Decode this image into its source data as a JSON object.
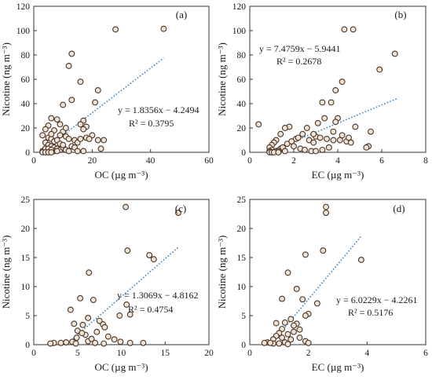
{
  "chart_data": [
    {
      "type": "scatter",
      "panel_label": "(a)",
      "xlabel": "OC (µg m⁻³)",
      "ylabel": "Nicotine (ng m⁻³)",
      "xlim": [
        0,
        60
      ],
      "ylim": [
        0,
        120
      ],
      "xticks": [
        0,
        20,
        40,
        60
      ],
      "yticks": [
        0,
        20,
        40,
        60,
        80,
        100,
        120
      ],
      "grid": false,
      "fit": {
        "slope": 1.8356,
        "intercept": -4.2494,
        "x_range": [
          3,
          44.5
        ]
      },
      "equation": "y = 1.8356x − 4.2494",
      "r2": "R² = 0.3795",
      "points": [
        [
          28,
          101
        ],
        [
          44.5,
          101.5
        ],
        [
          13,
          81
        ],
        [
          12,
          71
        ],
        [
          16,
          58
        ],
        [
          22,
          51
        ],
        [
          21,
          41
        ],
        [
          10,
          39
        ],
        [
          13,
          43
        ],
        [
          17,
          26
        ],
        [
          18,
          21
        ],
        [
          17,
          19
        ],
        [
          16,
          23
        ],
        [
          20,
          14
        ],
        [
          8,
          27
        ],
        [
          9,
          23
        ],
        [
          6,
          28
        ],
        [
          5,
          22
        ],
        [
          4,
          19
        ],
        [
          7,
          18
        ],
        [
          10,
          17
        ],
        [
          9,
          14
        ],
        [
          11,
          13
        ],
        [
          12,
          11
        ],
        [
          14,
          10
        ],
        [
          15,
          8
        ],
        [
          5,
          12
        ],
        [
          6,
          11
        ],
        [
          7,
          9
        ],
        [
          8,
          10
        ],
        [
          4,
          8
        ],
        [
          5,
          6
        ],
        [
          6,
          5
        ],
        [
          7,
          4
        ],
        [
          8,
          3
        ],
        [
          9,
          2
        ],
        [
          10,
          4
        ],
        [
          11,
          2
        ],
        [
          12,
          1
        ],
        [
          3,
          1
        ],
        [
          4,
          1
        ],
        [
          5,
          1
        ],
        [
          6,
          1
        ],
        [
          7,
          1
        ],
        [
          8,
          1
        ],
        [
          4,
          3
        ],
        [
          5,
          3
        ],
        [
          6,
          2
        ],
        [
          3,
          0
        ],
        [
          4,
          0
        ],
        [
          5,
          0
        ],
        [
          6,
          0
        ],
        [
          9,
          7
        ],
        [
          10,
          6
        ],
        [
          13,
          5
        ],
        [
          14,
          4
        ],
        [
          16,
          11
        ],
        [
          18,
          12
        ],
        [
          19,
          11
        ],
        [
          22,
          10
        ],
        [
          24,
          10
        ],
        [
          23,
          3
        ],
        [
          15,
          1
        ],
        [
          17,
          1
        ],
        [
          11,
          20
        ],
        [
          6,
          15
        ],
        [
          3,
          14
        ]
      ]
    },
    {
      "type": "scatter",
      "panel_label": "(b)",
      "xlabel": "EC (µg m⁻³)",
      "ylabel": "Nicotine (ng m⁻³)",
      "xlim": [
        0,
        8
      ],
      "ylim": [
        0,
        120
      ],
      "xticks": [
        0,
        2,
        4,
        6,
        8
      ],
      "yticks": [
        0,
        20,
        40,
        60,
        80,
        100,
        120
      ],
      "grid": false,
      "fit": {
        "slope": 7.4759,
        "intercept": -5.9441,
        "x_range": [
          0.85,
          6.7
        ]
      },
      "equation": "y = 7.4759x − 5.9441",
      "r2": "R² = 0.2678",
      "points": [
        [
          4.3,
          101
        ],
        [
          4.7,
          101
        ],
        [
          6.6,
          81
        ],
        [
          5.9,
          68
        ],
        [
          4.2,
          58
        ],
        [
          3.9,
          51
        ],
        [
          0.4,
          23
        ],
        [
          3.3,
          41
        ],
        [
          3.7,
          41
        ],
        [
          3.4,
          28
        ],
        [
          4,
          28
        ],
        [
          3.9,
          25
        ],
        [
          3.1,
          24
        ],
        [
          2.6,
          20
        ],
        [
          2.4,
          15
        ],
        [
          2.1,
          11
        ],
        [
          1.8,
          21
        ],
        [
          1.6,
          20
        ],
        [
          1.4,
          15
        ],
        [
          1.2,
          10
        ],
        [
          1.1,
          8
        ],
        [
          1,
          6
        ],
        [
          0.9,
          4
        ],
        [
          1,
          2
        ],
        [
          1.2,
          1
        ],
        [
          1.4,
          3
        ],
        [
          1.5,
          4
        ],
        [
          1.7,
          7
        ],
        [
          1.9,
          9
        ],
        [
          2.2,
          12
        ],
        [
          2.7,
          10
        ],
        [
          2.9,
          8
        ],
        [
          3,
          13
        ],
        [
          3.2,
          12
        ],
        [
          3.5,
          11
        ],
        [
          3.8,
          10
        ],
        [
          4.1,
          10
        ],
        [
          4.4,
          9
        ],
        [
          4.5,
          12
        ],
        [
          4.6,
          8
        ],
        [
          2,
          5
        ],
        [
          2.3,
          3
        ],
        [
          2.5,
          2
        ],
        [
          2.8,
          1
        ],
        [
          3,
          1
        ],
        [
          3.3,
          2
        ],
        [
          3.6,
          4
        ],
        [
          1.3,
          1
        ],
        [
          1.6,
          1
        ],
        [
          0.9,
          1
        ],
        [
          0.9,
          0
        ],
        [
          1,
          0
        ],
        [
          1.1,
          0
        ],
        [
          1.3,
          0
        ],
        [
          4.8,
          21
        ],
        [
          5.4,
          5
        ],
        [
          5.3,
          4
        ],
        [
          5.5,
          17
        ],
        [
          3.8,
          17
        ],
        [
          2.9,
          15
        ],
        [
          4.2,
          14
        ]
      ]
    },
    {
      "type": "scatter",
      "panel_label": "(c)",
      "xlabel": "OC (µg m⁻³)",
      "ylabel": "Nicotine (ng m⁻³)",
      "xlim": [
        0,
        20
      ],
      "ylim": [
        0,
        25
      ],
      "xticks": [
        0,
        5,
        10,
        15,
        20
      ],
      "yticks": [
        0,
        5,
        10,
        15,
        20,
        25
      ],
      "grid": false,
      "fit": {
        "slope": 1.3069,
        "intercept": -4.8162,
        "x_range": [
          4.5,
          16.5
        ]
      },
      "equation": "y = 1.3069x − 4.8162",
      "r2": "R² = 0.4754",
      "points": [
        [
          10.5,
          23.7
        ],
        [
          16.5,
          22.7
        ],
        [
          10.7,
          16.2
        ],
        [
          13.2,
          15.4
        ],
        [
          13.7,
          14.7
        ],
        [
          6.3,
          12.4
        ],
        [
          4.2,
          6
        ],
        [
          5.3,
          8
        ],
        [
          6.8,
          7.7
        ],
        [
          10.6,
          6.9
        ],
        [
          11,
          5.2
        ],
        [
          9.8,
          5
        ],
        [
          6.2,
          4.6
        ],
        [
          7.9,
          3.5
        ],
        [
          8.1,
          3
        ],
        [
          7.2,
          2.2
        ],
        [
          5.9,
          1.7
        ],
        [
          4.9,
          1.2
        ],
        [
          5,
          2.4
        ],
        [
          5.6,
          3.4
        ],
        [
          4.6,
          3.6
        ],
        [
          7.5,
          4.1
        ],
        [
          8.5,
          1.4
        ],
        [
          9.2,
          0.9
        ],
        [
          9.9,
          0.5
        ],
        [
          11,
          0.3
        ],
        [
          2.3,
          0.3
        ],
        [
          3.1,
          0.3
        ],
        [
          3.7,
          0.4
        ],
        [
          4.4,
          0.5
        ],
        [
          6.2,
          0.6
        ],
        [
          7,
          0.3
        ],
        [
          8,
          0.2
        ],
        [
          5.5,
          2
        ],
        [
          4.8,
          0.2
        ],
        [
          6.6,
          1
        ],
        [
          12.5,
          0.3
        ],
        [
          1.9,
          0.2
        ]
      ]
    },
    {
      "type": "scatter",
      "panel_label": "(d)",
      "xlabel": "EC (µg m⁻³)",
      "ylabel": "Nicotine (ng m⁻³)",
      "xlim": [
        0,
        6
      ],
      "ylim": [
        0,
        25
      ],
      "xticks": [
        0,
        2,
        4,
        6
      ],
      "yticks": [
        0,
        5,
        10,
        15,
        20,
        25
      ],
      "grid": false,
      "fit": {
        "slope": 6.0229,
        "intercept": -4.2261,
        "x_range": [
          0.75,
          3.8
        ]
      },
      "equation": "y = 6.0229x − 4.2261",
      "r2": "R² = 0.5176",
      "points": [
        [
          2.6,
          23.7
        ],
        [
          2.6,
          22.7
        ],
        [
          2.5,
          16.2
        ],
        [
          3.8,
          14.6
        ],
        [
          1.9,
          15.5
        ],
        [
          1.3,
          12.4
        ],
        [
          1.6,
          9.6
        ],
        [
          1.1,
          7.9
        ],
        [
          1.8,
          7.8
        ],
        [
          2.3,
          7.1
        ],
        [
          2,
          5.3
        ],
        [
          1.9,
          5
        ],
        [
          1.6,
          3.6
        ],
        [
          1.5,
          3.3
        ],
        [
          1.4,
          4.4
        ],
        [
          1.2,
          3.8
        ],
        [
          1.1,
          2.7
        ],
        [
          1,
          2
        ],
        [
          0.9,
          1.5
        ],
        [
          0.8,
          0.9
        ],
        [
          0.6,
          0.4
        ],
        [
          0.5,
          0.3
        ],
        [
          0.8,
          0.2
        ],
        [
          1,
          0.2
        ],
        [
          1.2,
          0.4
        ],
        [
          1.4,
          0.9
        ],
        [
          1.7,
          1.2
        ],
        [
          1.9,
          0.6
        ],
        [
          2,
          0.3
        ],
        [
          1.3,
          1.8
        ],
        [
          1.5,
          2.2
        ],
        [
          0.9,
          3.7
        ],
        [
          1.7,
          2.6
        ],
        [
          0.7,
          0.3
        ],
        [
          1.3,
          0.1
        ],
        [
          1.1,
          1.2
        ]
      ]
    }
  ]
}
